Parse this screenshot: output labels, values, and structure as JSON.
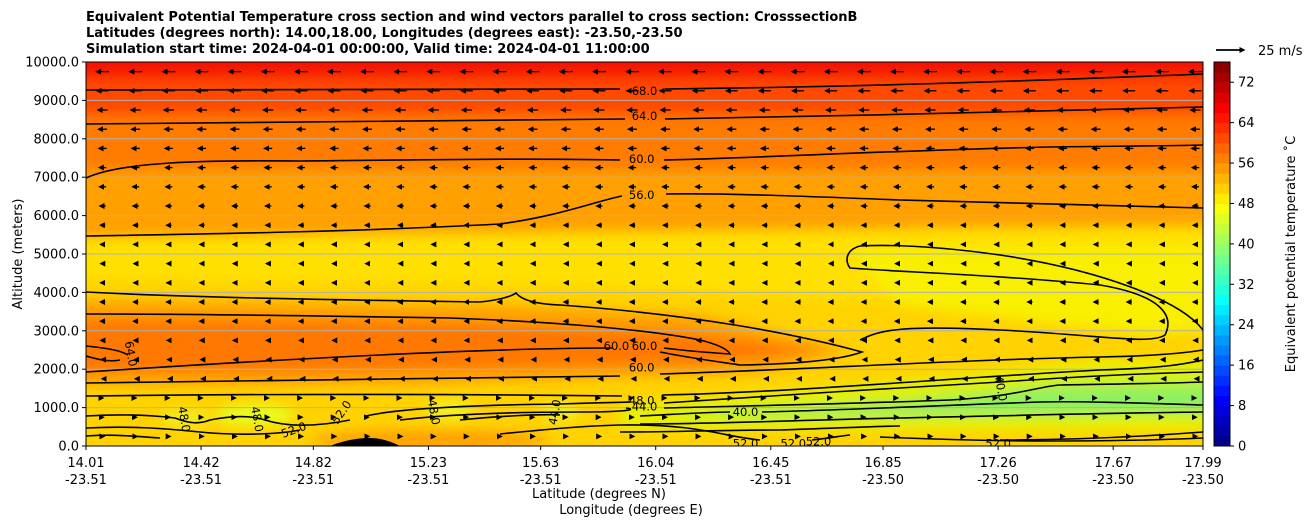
{
  "chart_data": {
    "type": "contour",
    "title_lines": [
      "Equivalent Potential Temperature cross section and wind vectors parallel to cross section: CrosssectionB",
      "Latitudes (degrees north): 14.00,18.00, Longitudes (degrees east): -23.50,-23.50",
      "Simulation start time: 2024-04-01 00:00:00, Valid time: 2024-04-01 11:00:00"
    ],
    "ylabel": "Altitude (meters)",
    "xlabel_lat": "Latitude (degrees N)",
    "xlabel_lon": "Longitude (degrees E)",
    "ylim": [
      0,
      10000
    ],
    "xlim": [
      14.01,
      17.99
    ],
    "y_ticks": [
      "0.0",
      "1000.0",
      "2000.0",
      "3000.0",
      "4000.0",
      "5000.0",
      "6000.0",
      "7000.0",
      "8000.0",
      "9000.0",
      "10000.0"
    ],
    "x_ticks": [
      {
        "lat": "14.01",
        "lon": "-23.51"
      },
      {
        "lat": "14.42",
        "lon": "-23.51"
      },
      {
        "lat": "14.82",
        "lon": "-23.51"
      },
      {
        "lat": "15.23",
        "lon": "-23.51"
      },
      {
        "lat": "15.63",
        "lon": "-23.51"
      },
      {
        "lat": "16.04",
        "lon": "-23.51"
      },
      {
        "lat": "16.45",
        "lon": "-23.51"
      },
      {
        "lat": "16.85",
        "lon": "-23.50"
      },
      {
        "lat": "17.26",
        "lon": "-23.50"
      },
      {
        "lat": "17.67",
        "lon": "-23.50"
      },
      {
        "lat": "17.99",
        "lon": "-23.50"
      }
    ],
    "colorbar": {
      "label": "Equivalent potential temperature $^\\circ$C",
      "label_display": "Equivalent potential temperature ˚C",
      "min": 0,
      "max": 76,
      "tick_labels": [
        "0",
        "8",
        "16",
        "24",
        "32",
        "40",
        "48",
        "56",
        "64",
        "72"
      ]
    },
    "quiver_key": {
      "label": "25 m/s",
      "value": 25
    },
    "contour_levels": [
      40,
      44,
      48,
      52,
      56,
      60,
      64,
      68
    ],
    "contour_labels": [
      {
        "text": "68.0",
        "x": 16.0,
        "y": 9250
      },
      {
        "text": "64.0",
        "x": 16.0,
        "y": 8600
      },
      {
        "text": "60.0",
        "x": 15.99,
        "y": 7470
      },
      {
        "text": "56.0",
        "x": 15.99,
        "y": 6530
      },
      {
        "text": "64.0",
        "x": 14.17,
        "y": 2400,
        "rot": 80
      },
      {
        "text": "60.0",
        "x": 15.9,
        "y": 2600
      },
      {
        "text": "60.0",
        "x": 16.0,
        "y": 2600
      },
      {
        "text": "60.0",
        "x": 15.99,
        "y": 2050
      },
      {
        "text": "48.0",
        "x": 15.99,
        "y": 1180
      },
      {
        "text": "44.0",
        "x": 16.0,
        "y": 1030
      },
      {
        "text": "40.0",
        "x": 16.36,
        "y": 880
      },
      {
        "text": "40.0",
        "x": 17.27,
        "y": 1500,
        "rot": 80
      },
      {
        "text": "48.0",
        "x": 14.36,
        "y": 700,
        "rot": 80
      },
      {
        "text": "48.0",
        "x": 14.62,
        "y": 700,
        "rot": 80
      },
      {
        "text": "52.0",
        "x": 14.75,
        "y": 420,
        "rot": -20
      },
      {
        "text": "52.0",
        "x": 14.92,
        "y": 880,
        "rot": -55
      },
      {
        "text": "48.0",
        "x": 15.25,
        "y": 880,
        "rot": 80
      },
      {
        "text": "44.0",
        "x": 15.68,
        "y": 880,
        "rot": -80
      },
      {
        "text": "52.0",
        "x": 16.36,
        "y": 60
      },
      {
        "text": "52.0",
        "x": 16.53,
        "y": 60
      },
      {
        "text": "52.0",
        "x": 16.62,
        "y": 120
      },
      {
        "text": "52.0",
        "x": 17.26,
        "y": 60
      }
    ],
    "wind_field": {
      "description": "horizontal winds parallel to cross section, mostly easterly (pointing toward decreasing latitude), strongest near the top",
      "u_profile_ms": [
        {
          "alt": 200,
          "u": 2
        },
        {
          "alt": 1300,
          "u": 0
        },
        {
          "alt": 2500,
          "u": -3
        },
        {
          "alt": 3500,
          "u": -4.5
        },
        {
          "alt": 4500,
          "u": -3.5
        },
        {
          "alt": 5500,
          "u": -4
        },
        {
          "alt": 6500,
          "u": -5.5
        },
        {
          "alt": 7500,
          "u": -6.5
        },
        {
          "alt": 8500,
          "u": -8
        },
        {
          "alt": 9500,
          "u": -11
        }
      ]
    },
    "terrain": {
      "x_center": 15.06,
      "peak_alt": 200
    }
  }
}
